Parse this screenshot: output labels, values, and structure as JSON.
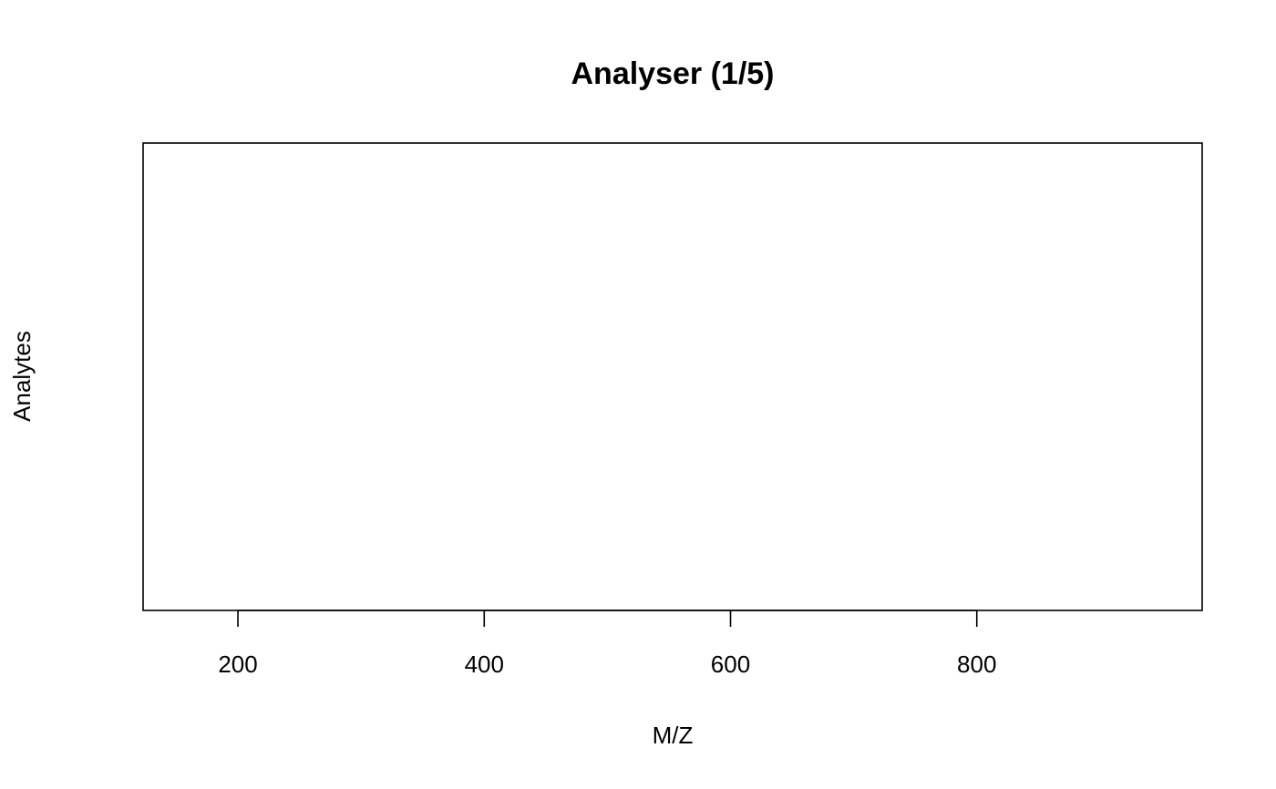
{
  "chart_data": {
    "type": "scatter",
    "title": "Analyser (1/5)",
    "xlabel": "M/Z",
    "ylabel": "Analytes",
    "xlim": [
      123,
      983
    ],
    "x_ticks": [
      200,
      400,
      600,
      800
    ],
    "x_tick_labels": [
      "200",
      "400",
      "600",
      "800"
    ],
    "y_ticks": [],
    "series": [],
    "grid": false,
    "legend": "none"
  }
}
